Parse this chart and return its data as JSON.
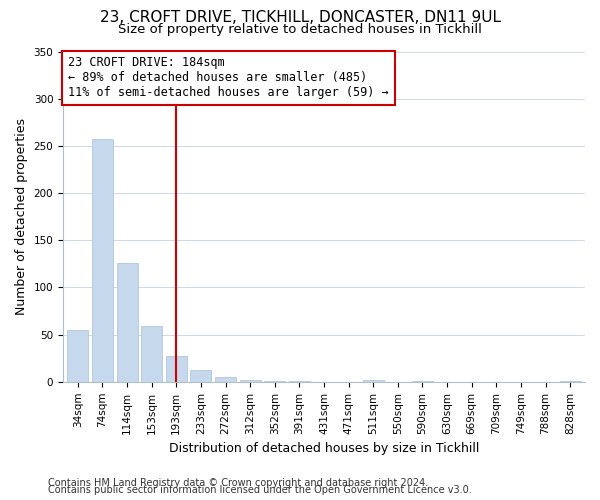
{
  "title": "23, CROFT DRIVE, TICKHILL, DONCASTER, DN11 9UL",
  "subtitle": "Size of property relative to detached houses in Tickhill",
  "xlabel": "Distribution of detached houses by size in Tickhill",
  "ylabel": "Number of detached properties",
  "bar_labels": [
    "34sqm",
    "74sqm",
    "114sqm",
    "153sqm",
    "193sqm",
    "233sqm",
    "272sqm",
    "312sqm",
    "352sqm",
    "391sqm",
    "431sqm",
    "471sqm",
    "511sqm",
    "550sqm",
    "590sqm",
    "630sqm",
    "669sqm",
    "709sqm",
    "749sqm",
    "788sqm",
    "828sqm"
  ],
  "bar_values": [
    55,
    257,
    126,
    59,
    27,
    13,
    5,
    2,
    1,
    1,
    0,
    0,
    2,
    0,
    1,
    0,
    0,
    0,
    0,
    0,
    1
  ],
  "bar_color": "#c5d8ec",
  "bar_edge_color": "#aac0d8",
  "vline_x": 4,
  "vline_color": "#cc0000",
  "annotation_line1": "23 CROFT DRIVE: 184sqm",
  "annotation_line2": "← 89% of detached houses are smaller (485)",
  "annotation_line3": "11% of semi-detached houses are larger (59) →",
  "annotation_box_color": "#ffffff",
  "annotation_box_edge": "#cc0000",
  "ylim": [
    0,
    350
  ],
  "yticks": [
    0,
    50,
    100,
    150,
    200,
    250,
    300,
    350
  ],
  "footer1": "Contains HM Land Registry data © Crown copyright and database right 2024.",
  "footer2": "Contains public sector information licensed under the Open Government Licence v3.0.",
  "title_fontsize": 11,
  "subtitle_fontsize": 9.5,
  "axis_label_fontsize": 9,
  "tick_fontsize": 7.5,
  "annotation_fontsize": 8.5,
  "footer_fontsize": 7
}
